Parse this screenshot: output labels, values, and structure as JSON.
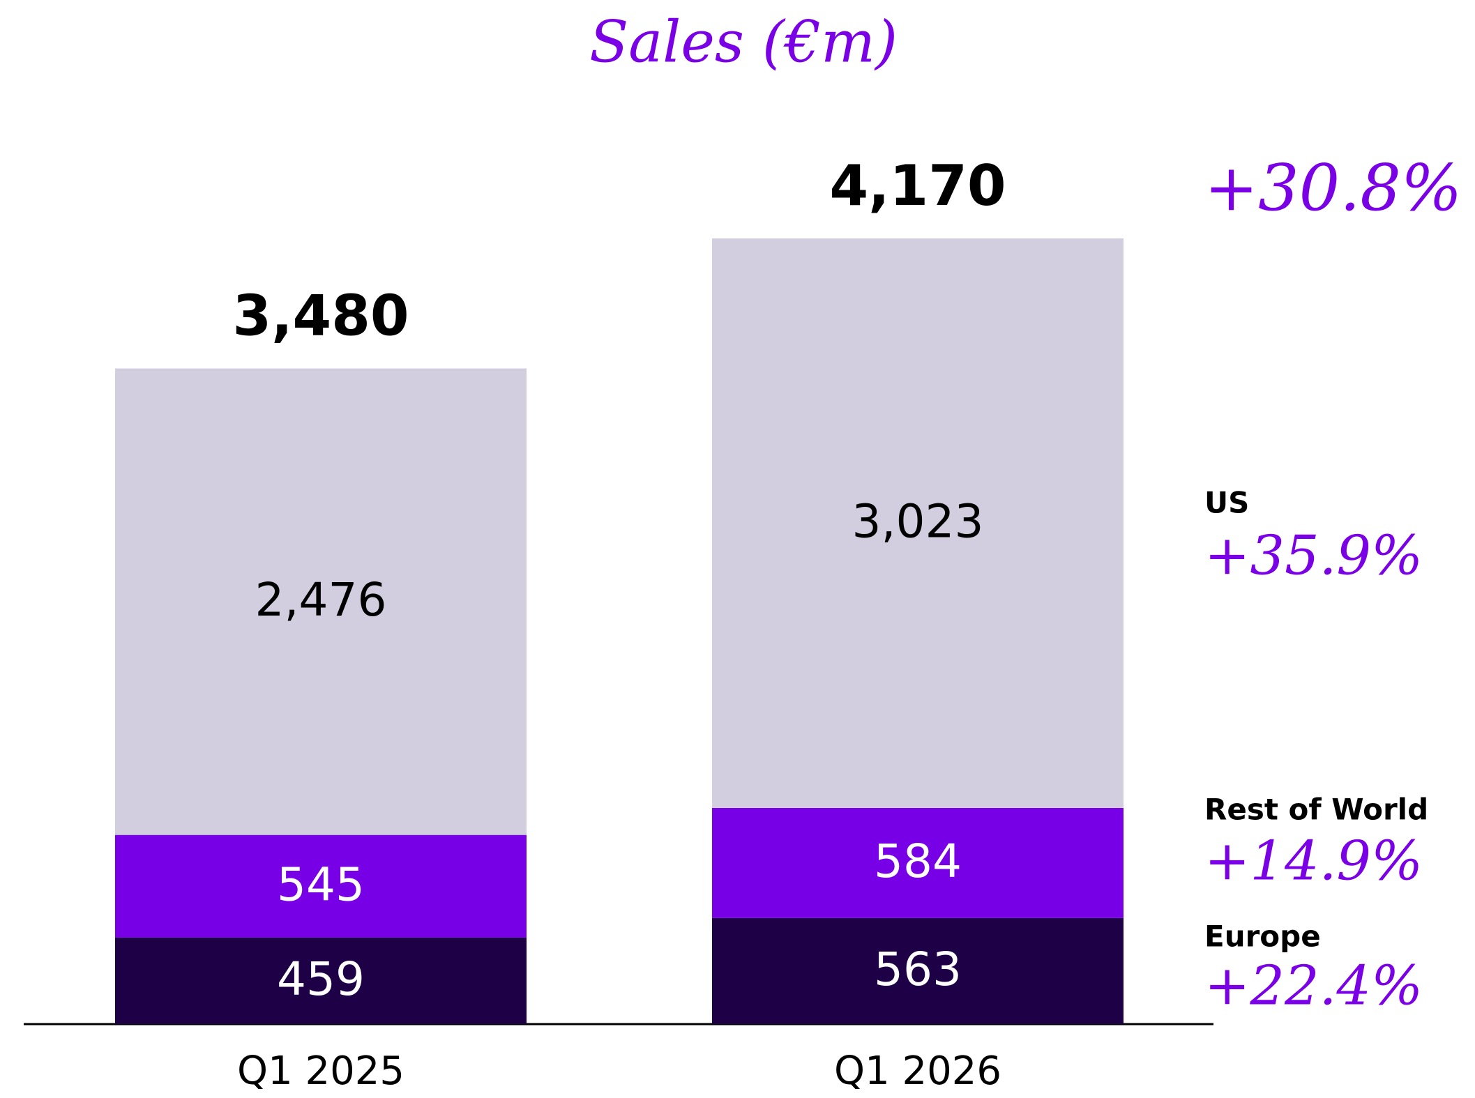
{
  "chart_data": {
    "type": "stacked_bar",
    "title": "Sales (€m)",
    "categories": [
      "Q1 2025",
      "Q1 2026"
    ],
    "series": [
      {
        "name": "Europe",
        "color": "#1e0046",
        "values": [
          459,
          563
        ],
        "value_labels": [
          "459",
          "563"
        ],
        "growth": "+22.4%"
      },
      {
        "name": "Rest of World",
        "color": "#7700e6",
        "values": [
          545,
          584
        ],
        "value_labels": [
          "545",
          "584"
        ],
        "growth": "+14.9%"
      },
      {
        "name": "US",
        "color": "#d2cedf",
        "values": [
          2476,
          3023
        ],
        "value_labels": [
          "2,476",
          "3,023"
        ],
        "growth": "+35.9%"
      }
    ],
    "totals": {
      "values": [
        3480,
        4170
      ],
      "value_labels": [
        "3,480",
        "4,170"
      ],
      "growth": "+30.8%"
    }
  }
}
